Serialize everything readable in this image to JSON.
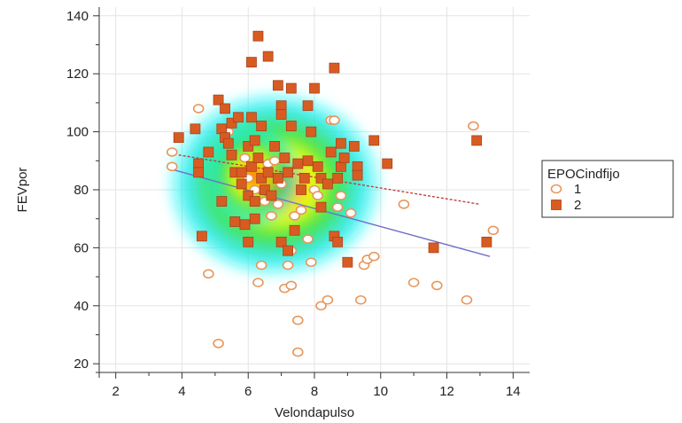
{
  "chart_data": {
    "type": "scatter",
    "xlabel": "Velondapulso",
    "ylabel": "FEVpor",
    "xlim": [
      1.5,
      14.5
    ],
    "ylim": [
      17,
      143
    ],
    "x_ticks": [
      2,
      4,
      6,
      8,
      10,
      12,
      14
    ],
    "y_ticks": [
      20,
      40,
      60,
      80,
      100,
      120,
      140
    ],
    "grid": true,
    "density_overlay": true,
    "legend": {
      "title": "EPOCindfijo",
      "placement": "right"
    },
    "series": [
      {
        "name": "1",
        "marker": "open-circle",
        "color": "#e8955a",
        "points": [
          [
            3.7,
            93
          ],
          [
            3.7,
            88
          ],
          [
            4.5,
            108
          ],
          [
            4.8,
            51
          ],
          [
            5.1,
            27
          ],
          [
            5.4,
            100
          ],
          [
            5.9,
            91
          ],
          [
            6.0,
            84
          ],
          [
            6.2,
            80
          ],
          [
            6.3,
            48
          ],
          [
            6.4,
            54
          ],
          [
            6.5,
            76
          ],
          [
            6.6,
            89
          ],
          [
            6.7,
            71
          ],
          [
            6.8,
            90
          ],
          [
            6.9,
            75
          ],
          [
            7.0,
            82
          ],
          [
            7.1,
            46
          ],
          [
            7.2,
            54
          ],
          [
            7.3,
            47
          ],
          [
            7.3,
            59
          ],
          [
            7.4,
            71
          ],
          [
            7.5,
            35
          ],
          [
            7.5,
            24
          ],
          [
            7.6,
            73
          ],
          [
            7.8,
            63
          ],
          [
            7.9,
            55
          ],
          [
            8.0,
            80
          ],
          [
            8.1,
            78
          ],
          [
            8.2,
            40
          ],
          [
            8.4,
            42
          ],
          [
            8.5,
            104
          ],
          [
            8.6,
            104
          ],
          [
            8.7,
            74
          ],
          [
            8.8,
            78
          ],
          [
            9.1,
            72
          ],
          [
            9.4,
            42
          ],
          [
            9.5,
            54
          ],
          [
            9.6,
            56
          ],
          [
            9.8,
            57
          ],
          [
            10.7,
            75
          ],
          [
            11.0,
            48
          ],
          [
            11.7,
            47
          ],
          [
            12.6,
            42
          ],
          [
            12.8,
            102
          ],
          [
            13.4,
            66
          ]
        ]
      },
      {
        "name": "2",
        "marker": "filled-square",
        "color": "#d85c22",
        "points": [
          [
            3.9,
            98
          ],
          [
            4.4,
            101
          ],
          [
            4.5,
            89
          ],
          [
            4.5,
            86
          ],
          [
            4.6,
            64
          ],
          [
            4.8,
            93
          ],
          [
            5.1,
            111
          ],
          [
            5.2,
            101
          ],
          [
            5.3,
            98
          ],
          [
            5.3,
            108
          ],
          [
            5.4,
            96
          ],
          [
            5.5,
            92
          ],
          [
            5.5,
            103
          ],
          [
            5.6,
            86
          ],
          [
            5.6,
            69
          ],
          [
            5.7,
            105
          ],
          [
            5.8,
            82
          ],
          [
            5.9,
            68
          ],
          [
            6.0,
            78
          ],
          [
            6.0,
            95
          ],
          [
            6.1,
            124
          ],
          [
            6.1,
            105
          ],
          [
            6.1,
            88
          ],
          [
            6.2,
            76
          ],
          [
            6.2,
            70
          ],
          [
            6.3,
            91
          ],
          [
            6.3,
            133
          ],
          [
            6.4,
            84
          ],
          [
            6.4,
            102
          ],
          [
            6.5,
            80
          ],
          [
            6.6,
            126
          ],
          [
            6.6,
            86
          ],
          [
            6.7,
            78
          ],
          [
            6.8,
            95
          ],
          [
            6.9,
            116
          ],
          [
            7.0,
            109
          ],
          [
            7.0,
            106
          ],
          [
            7.1,
            91
          ],
          [
            7.2,
            86
          ],
          [
            7.3,
            115
          ],
          [
            7.3,
            102
          ],
          [
            7.4,
            66
          ],
          [
            7.5,
            89
          ],
          [
            7.6,
            80
          ],
          [
            7.7,
            84
          ],
          [
            7.8,
            109
          ],
          [
            7.8,
            90
          ],
          [
            7.9,
            100
          ],
          [
            8.0,
            115
          ],
          [
            8.1,
            88
          ],
          [
            8.2,
            74
          ],
          [
            8.2,
            84
          ],
          [
            8.4,
            82
          ],
          [
            8.5,
            93
          ],
          [
            8.6,
            64
          ],
          [
            8.7,
            84
          ],
          [
            8.8,
            96
          ],
          [
            8.8,
            88
          ],
          [
            8.9,
            91
          ],
          [
            9.0,
            55
          ],
          [
            9.2,
            95
          ],
          [
            9.3,
            88
          ],
          [
            9.3,
            85
          ],
          [
            9.8,
            97
          ],
          [
            10.2,
            89
          ],
          [
            11.6,
            60
          ],
          [
            12.9,
            97
          ],
          [
            13.2,
            62
          ],
          [
            6.2,
            97
          ],
          [
            7.0,
            62
          ],
          [
            7.2,
            59
          ],
          [
            5.2,
            76
          ],
          [
            6.0,
            62
          ],
          [
            8.6,
            122
          ],
          [
            8.7,
            62
          ],
          [
            5.8,
            86
          ],
          [
            6.9,
            84
          ]
        ]
      }
    ],
    "fit_lines": [
      {
        "series": "1",
        "style": "solid",
        "color": "#7070c8",
        "x": [
          3.7,
          13.3
        ],
        "y": [
          87,
          57
        ]
      },
      {
        "series": "2",
        "style": "dashed",
        "color": "#c04040",
        "x": [
          3.9,
          13.0
        ],
        "y": [
          92,
          75
        ]
      }
    ]
  }
}
